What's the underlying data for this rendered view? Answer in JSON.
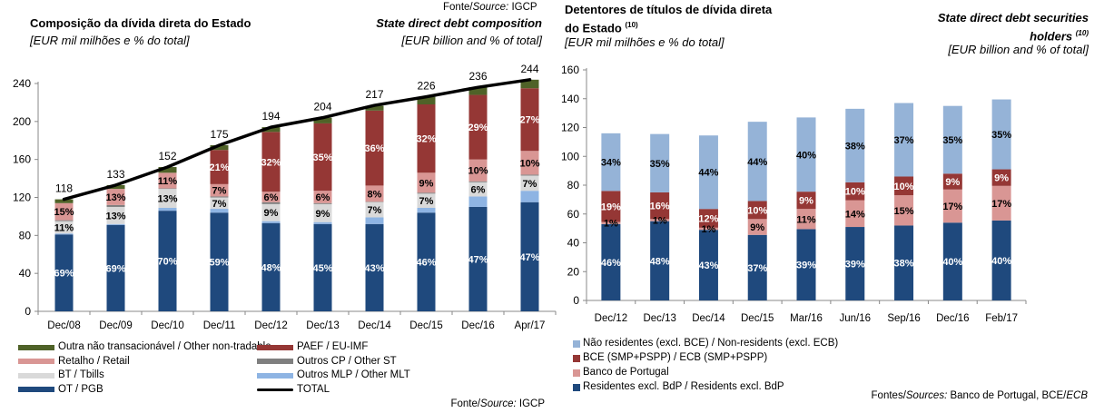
{
  "top_source": {
    "prefix": "Fonte/",
    "italic": "Source:",
    "suffix": " IGCP"
  },
  "chart_data": [
    {
      "type": "bar",
      "stacked": true,
      "title_pt": "Composição da dívida direta do Estado",
      "subtitle_pt": "[EUR mil milhões e % do total]",
      "title_en": "State direct debt composition",
      "subtitle_en": "[EUR billion and % of total]",
      "categories": [
        "Dec/08",
        "Dec/09",
        "Dec/10",
        "Dec/11",
        "Dec/12",
        "Dec/13",
        "Dec/14",
        "Dec/15",
        "Dec/16",
        "Apr/17"
      ],
      "ylim": [
        0,
        240
      ],
      "yticks": [
        0,
        40,
        80,
        120,
        160,
        200,
        240
      ],
      "series": [
        {
          "name": "OT / PGB",
          "color": "#1f497d",
          "label_color": "#ffffff",
          "values": [
            81,
            91,
            106,
            104,
            93,
            92,
            92,
            104,
            110,
            115
          ],
          "labels": [
            "69%",
            "69%",
            "70%",
            "59%",
            "48%",
            "45%",
            "43%",
            "46%",
            "47%",
            "47%"
          ]
        },
        {
          "name": "Outros MLP / Other MLT",
          "color": "#8eb4e3",
          "values": [
            1,
            1,
            3,
            4,
            2,
            2,
            7,
            5,
            11,
            12
          ]
        },
        {
          "name": "BT / Tbills",
          "color": "#d9d9d9",
          "label_color": "#000000",
          "values": [
            13,
            18,
            20,
            12,
            18,
            19,
            16,
            15,
            15,
            16
          ],
          "labels": [
            "11%",
            "13%",
            "13%",
            "7%",
            "9%",
            "9%",
            "7%",
            "7%",
            "6%",
            "7%"
          ]
        },
        {
          "name": "Outros CP / Other ST",
          "color": "#7f7f7f",
          "values": [
            1,
            2,
            0.5,
            1,
            2,
            1,
            0.5,
            1,
            1,
            1
          ]
        },
        {
          "name": "Retalho / Retail",
          "color": "#d99694",
          "label_color": "#000000",
          "values": [
            18,
            17,
            16.5,
            13,
            11,
            13,
            17,
            21,
            23,
            25
          ],
          "labels": [
            "15%",
            "13%",
            "11%",
            "7%",
            "6%",
            "6%",
            "8%",
            "9%",
            "10%",
            "10%"
          ]
        },
        {
          "name": "PAEF / EU-IMF",
          "color": "#953735",
          "label_color": "#ffffff",
          "values": [
            0,
            0,
            0,
            36,
            63,
            71,
            79,
            72,
            68,
            66
          ],
          "labels": [
            null,
            null,
            null,
            "21%",
            "32%",
            "35%",
            "36%",
            "32%",
            "29%",
            "27%"
          ]
        },
        {
          "name": "Outra não transacionável / Other non-tradable",
          "color": "#4f6228",
          "values": [
            4,
            4,
            6,
            5,
            5,
            6,
            5,
            8,
            8,
            9
          ]
        }
      ],
      "total": {
        "name": "TOTAL",
        "color": "#000000",
        "values": [
          118,
          133,
          152,
          175,
          194,
          204,
          217,
          226,
          236,
          244
        ]
      },
      "legend": [
        {
          "label": "Outra não transacionável / Other non-tradable",
          "color": "#4f6228"
        },
        {
          "label": "PAEF / EU-IMF",
          "color": "#953735"
        },
        {
          "label": "Retalho / Retail",
          "color": "#d99694"
        },
        {
          "label": "Outros CP / Other ST",
          "color": "#7f7f7f"
        },
        {
          "label": "BT / Tbills",
          "color": "#d9d9d9"
        },
        {
          "label": "Outros MLP / Other MLT",
          "color": "#8eb4e3"
        },
        {
          "label": "OT / PGB",
          "color": "#1f497d"
        },
        {
          "label": "TOTAL",
          "color": "#000000"
        }
      ],
      "source": {
        "prefix": "Fonte/",
        "italic": "Source:",
        "suffix": " IGCP"
      }
    },
    {
      "type": "bar",
      "stacked": true,
      "title_pt": "Detentores de títulos de dívida direta",
      "title_pt_line2": "do Estado",
      "note": "(10)",
      "subtitle_pt": "[EUR mil milhões e % do total]",
      "title_en": "State direct debt securities",
      "title_en_line2": "holders",
      "subtitle_en": "[EUR billion and % of total]",
      "categories": [
        "Dec/12",
        "Dec/13",
        "Dec/14",
        "Dec/15",
        "Mar/16",
        "Jun/16",
        "Sep/16",
        "Dec/16",
        "Feb/17"
      ],
      "ylim": [
        0,
        160
      ],
      "yticks": [
        0,
        20,
        40,
        60,
        80,
        100,
        120,
        140,
        160
      ],
      "series": [
        {
          "name": "Residentes excl. BdP / Residents excl. BdP",
          "color": "#1f497d",
          "label_color": "#ffffff",
          "values": [
            53,
            55,
            49,
            45.5,
            49.5,
            51,
            52,
            54,
            55.5
          ],
          "labels": [
            "46%",
            "48%",
            "43%",
            "37%",
            "39%",
            "39%",
            "38%",
            "40%",
            "40%"
          ]
        },
        {
          "name": "Banco de Portugal",
          "color": "#d99694",
          "label_color": "#000000",
          "values": [
            1.5,
            1.5,
            1.5,
            11,
            14,
            18.5,
            21,
            23,
            24
          ],
          "labels": [
            "1%",
            "1%",
            "1%",
            "9%",
            "11%",
            "14%",
            "15%",
            "17%",
            "17%"
          ]
        },
        {
          "name": "BCE (SMP+PSPP) / ECB (SMP+PSPP)",
          "color": "#953735",
          "label_color": "#ffffff",
          "values": [
            21.5,
            18.5,
            13,
            12.5,
            12,
            12.5,
            13,
            11,
            11.5
          ],
          "labels": [
            "19%",
            "16%",
            "12%",
            "10%",
            "9%",
            "10%",
            "10%",
            "9%",
            "9%"
          ]
        },
        {
          "name": "Não residentes (excl. BCE) / Non-residents (excl. ECB)",
          "color": "#95b3d7",
          "label_color": "#000000",
          "values": [
            40,
            40.5,
            51,
            55,
            51.5,
            51,
            51,
            47,
            48.5
          ],
          "labels": [
            "34%",
            "35%",
            "44%",
            "44%",
            "40%",
            "38%",
            "37%",
            "35%",
            "35%"
          ]
        }
      ],
      "legend": [
        {
          "label": "Não residentes (excl. BCE) / Non-residents (excl. ECB)",
          "color": "#95b3d7"
        },
        {
          "label": "BCE (SMP+PSPP) / ECB (SMP+PSPP)",
          "color": "#953735"
        },
        {
          "label": "Banco de Portugal",
          "color": "#d99694"
        },
        {
          "label": "Residentes excl. BdP / Residents excl. BdP",
          "color": "#1f497d"
        }
      ],
      "source": {
        "prefix": "Fontes/",
        "italic": "Sources:",
        "suffix": " Banco de Portugal, BCE/",
        "italic2": "ECB"
      }
    }
  ]
}
